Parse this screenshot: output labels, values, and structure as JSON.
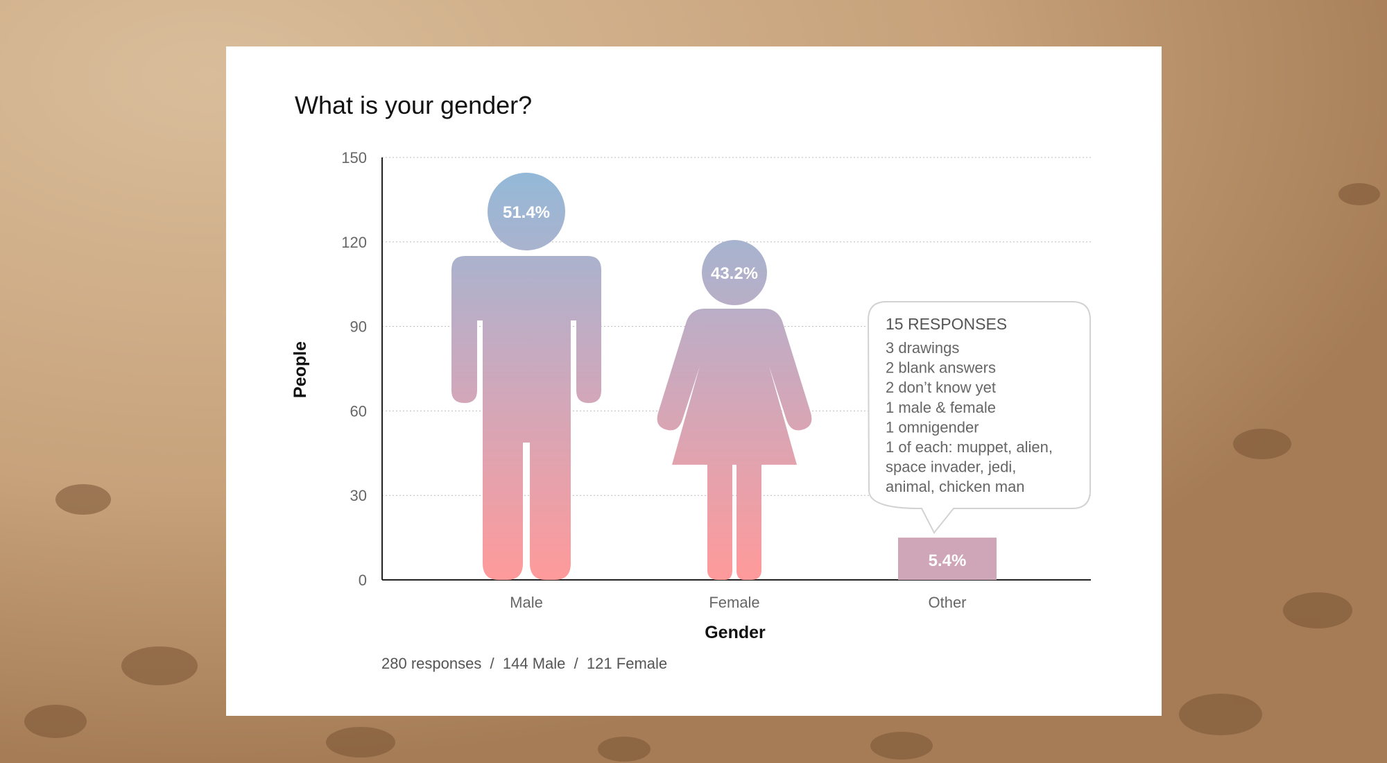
{
  "chart_data": {
    "type": "bar",
    "title": "What is your gender?",
    "xlabel": "Gender",
    "ylabel": "People",
    "ylim": [
      0,
      150
    ],
    "yticks": [
      "0",
      "30",
      "60",
      "90",
      "120",
      "150"
    ],
    "categories": [
      "Male",
      "Female",
      "Other"
    ],
    "values": [
      144,
      121,
      15
    ],
    "percent_labels": [
      "51.4%",
      "43.2%",
      "5.4%"
    ],
    "grid": true,
    "colors": {
      "top": "#93b9d8",
      "mid": "#c7aac0",
      "bottom": "#ff9a9a",
      "other_bar": "#cfa5b8"
    },
    "callout": {
      "heading": "15 RESPONSES",
      "lines": [
        "3 drawings",
        "2 blank answers",
        "2 don’t know yet",
        "1 male & female",
        "1 omnigender",
        "1 of each: muppet, alien,",
        "space invader, jedi,",
        "animal, chicken man"
      ]
    },
    "footer": "280 responses  /  144 Male  /  121 Female"
  }
}
